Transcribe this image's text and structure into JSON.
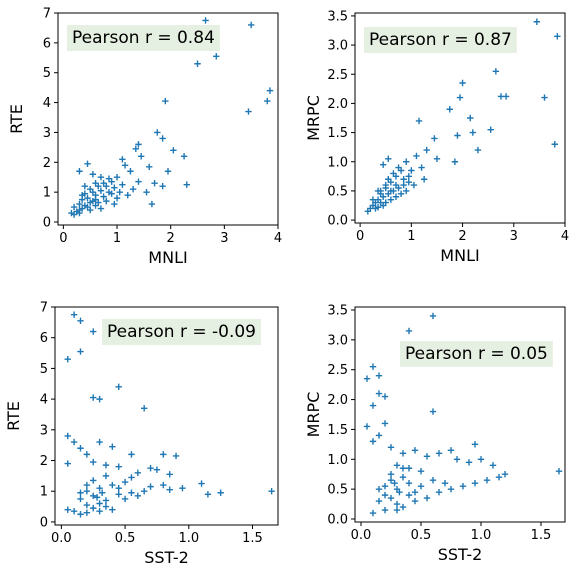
{
  "figure": {
    "background": "#ffffff",
    "marker_color": "#1f77b4",
    "annotation_bg": "#e6f0e2"
  },
  "chart_data": [
    {
      "type": "scatter",
      "xlabel": "MNLI",
      "ylabel": "RTE",
      "xlim": [
        -0.1,
        4.0
      ],
      "ylim": [
        -0.1,
        7.0
      ],
      "xticks": [
        0,
        1,
        2,
        3,
        4
      ],
      "yticks": [
        0,
        1,
        2,
        3,
        4,
        5,
        6,
        7
      ],
      "annotation": "Pearson r = 0.84",
      "marker": "+",
      "points": [
        [
          2.65,
          6.75
        ],
        [
          3.5,
          6.6
        ],
        [
          2.8,
          6.2
        ],
        [
          2.5,
          5.3
        ],
        [
          2.85,
          5.55
        ],
        [
          3.85,
          4.4
        ],
        [
          3.8,
          4.05
        ],
        [
          1.9,
          4.05
        ],
        [
          3.45,
          3.7
        ],
        [
          1.75,
          3.0
        ],
        [
          1.85,
          2.8
        ],
        [
          1.4,
          2.6
        ],
        [
          1.35,
          2.45
        ],
        [
          2.05,
          2.4
        ],
        [
          2.25,
          2.2
        ],
        [
          1.45,
          2.2
        ],
        [
          1.1,
          2.1
        ],
        [
          1.15,
          1.9
        ],
        [
          1.6,
          1.85
        ],
        [
          1.25,
          1.7
        ],
        [
          1.95,
          1.7
        ],
        [
          1.0,
          1.5
        ],
        [
          1.4,
          1.35
        ],
        [
          1.7,
          1.3
        ],
        [
          2.3,
          1.25
        ],
        [
          1.85,
          1.2
        ],
        [
          1.55,
          1.0
        ],
        [
          1.3,
          1.1
        ],
        [
          1.2,
          0.9
        ],
        [
          1.65,
          0.6
        ],
        [
          0.45,
          1.95
        ],
        [
          0.3,
          1.7
        ],
        [
          0.55,
          1.6
        ],
        [
          0.7,
          1.5
        ],
        [
          0.85,
          1.45
        ],
        [
          0.6,
          1.3
        ],
        [
          0.4,
          1.2
        ],
        [
          0.5,
          1.1
        ],
        [
          0.7,
          1.05
        ],
        [
          0.8,
          1.2
        ],
        [
          0.95,
          1.15
        ],
        [
          0.9,
          0.95
        ],
        [
          0.75,
          0.85
        ],
        [
          0.6,
          0.9
        ],
        [
          0.45,
          0.8
        ],
        [
          0.35,
          0.75
        ],
        [
          0.3,
          0.6
        ],
        [
          0.2,
          0.5
        ],
        [
          0.25,
          0.35
        ],
        [
          0.4,
          0.55
        ],
        [
          0.55,
          0.7
        ],
        [
          0.65,
          0.65
        ],
        [
          0.8,
          0.7
        ],
        [
          1.0,
          0.8
        ],
        [
          1.05,
          1.0
        ],
        [
          0.5,
          0.4
        ],
        [
          0.35,
          0.45
        ],
        [
          0.3,
          0.3
        ],
        [
          0.6,
          0.55
        ],
        [
          0.7,
          0.45
        ],
        [
          0.85,
          1.0
        ],
        [
          0.95,
          0.6
        ],
        [
          0.4,
          0.95
        ],
        [
          0.55,
          1.0
        ],
        [
          0.65,
          1.2
        ],
        [
          0.75,
          1.3
        ],
        [
          0.5,
          0.65
        ],
        [
          0.45,
          0.5
        ],
        [
          0.3,
          0.4
        ],
        [
          0.2,
          0.25
        ],
        [
          0.15,
          0.3
        ],
        [
          0.35,
          0.9
        ],
        [
          0.6,
          0.75
        ],
        [
          1.1,
          1.25
        ],
        [
          0.9,
          1.35
        ]
      ]
    },
    {
      "type": "scatter",
      "xlabel": "MNLI",
      "ylabel": "MRPC",
      "xlim": [
        -0.1,
        4.0
      ],
      "ylim": [
        -0.05,
        3.55
      ],
      "xticks": [
        0,
        1,
        2,
        3,
        4
      ],
      "yticks": [
        0.0,
        0.5,
        1.0,
        1.5,
        2.0,
        2.5,
        3.0,
        3.5
      ],
      "annotation": "Pearson r = 0.87",
      "marker": "+",
      "points": [
        [
          3.45,
          3.4
        ],
        [
          3.85,
          3.15
        ],
        [
          2.65,
          2.55
        ],
        [
          3.6,
          2.1
        ],
        [
          2.75,
          2.12
        ],
        [
          2.85,
          2.12
        ],
        [
          2.0,
          2.35
        ],
        [
          1.95,
          2.1
        ],
        [
          1.75,
          1.9
        ],
        [
          2.15,
          1.75
        ],
        [
          2.55,
          1.55
        ],
        [
          2.2,
          1.5
        ],
        [
          1.9,
          1.45
        ],
        [
          1.15,
          1.7
        ],
        [
          3.8,
          1.3
        ],
        [
          2.3,
          1.2
        ],
        [
          1.45,
          1.4
        ],
        [
          1.3,
          1.2
        ],
        [
          1.1,
          1.1
        ],
        [
          1.5,
          1.05
        ],
        [
          1.85,
          1.0
        ],
        [
          0.55,
          1.05
        ],
        [
          0.45,
          0.95
        ],
        [
          0.9,
          1.0
        ],
        [
          1.0,
          0.85
        ],
        [
          1.2,
          0.9
        ],
        [
          0.95,
          0.65
        ],
        [
          1.25,
          0.7
        ],
        [
          0.7,
          0.75
        ],
        [
          0.8,
          0.85
        ],
        [
          0.85,
          0.7
        ],
        [
          0.6,
          0.65
        ],
        [
          0.7,
          0.6
        ],
        [
          0.5,
          0.55
        ],
        [
          0.55,
          0.45
        ],
        [
          0.65,
          0.5
        ],
        [
          0.75,
          0.55
        ],
        [
          0.45,
          0.4
        ],
        [
          0.35,
          0.35
        ],
        [
          0.4,
          0.5
        ],
        [
          0.3,
          0.3
        ],
        [
          0.25,
          0.25
        ],
        [
          0.2,
          0.2
        ],
        [
          0.6,
          0.35
        ],
        [
          0.5,
          0.3
        ],
        [
          0.8,
          0.45
        ],
        [
          0.9,
          0.5
        ],
        [
          1.05,
          0.6
        ],
        [
          0.35,
          0.5
        ],
        [
          0.55,
          0.7
        ],
        [
          0.65,
          0.8
        ],
        [
          0.75,
          0.9
        ],
        [
          0.45,
          0.25
        ],
        [
          0.3,
          0.2
        ],
        [
          0.4,
          0.3
        ],
        [
          0.85,
          0.6
        ],
        [
          0.95,
          0.75
        ],
        [
          0.7,
          0.4
        ],
        [
          0.5,
          0.6
        ],
        [
          0.6,
          0.5
        ],
        [
          0.4,
          0.45
        ],
        [
          0.25,
          0.35
        ],
        [
          0.15,
          0.15
        ],
        [
          0.35,
          0.22
        ]
      ]
    },
    {
      "type": "scatter",
      "xlabel": "SST-2",
      "ylabel": "RTE",
      "xlim": [
        -0.05,
        1.7
      ],
      "ylim": [
        -0.1,
        7.0
      ],
      "xticks": [
        0.0,
        0.5,
        1.0,
        1.5
      ],
      "ytick_labels": [
        "0",
        "1",
        "2",
        "3",
        "4",
        "5",
        "6",
        "7"
      ],
      "yticks": [
        0,
        1,
        2,
        3,
        4,
        5,
        6,
        7
      ],
      "annotation": "Pearson r = -0.09",
      "marker": "+",
      "points": [
        [
          0.1,
          6.75
        ],
        [
          0.15,
          6.55
        ],
        [
          0.25,
          6.2
        ],
        [
          0.05,
          5.3
        ],
        [
          0.15,
          5.55
        ],
        [
          0.45,
          4.4
        ],
        [
          0.25,
          4.05
        ],
        [
          0.3,
          4.0
        ],
        [
          0.65,
          3.7
        ],
        [
          0.05,
          2.8
        ],
        [
          0.1,
          2.6
        ],
        [
          0.3,
          2.6
        ],
        [
          0.15,
          2.4
        ],
        [
          0.4,
          2.45
        ],
        [
          0.2,
          2.2
        ],
        [
          0.55,
          2.2
        ],
        [
          0.8,
          2.2
        ],
        [
          0.9,
          2.15
        ],
        [
          0.05,
          1.9
        ],
        [
          0.25,
          1.95
        ],
        [
          0.35,
          1.85
        ],
        [
          0.45,
          1.8
        ],
        [
          0.6,
          1.6
        ],
        [
          0.7,
          1.75
        ],
        [
          0.75,
          1.7
        ],
        [
          0.85,
          1.55
        ],
        [
          0.55,
          1.45
        ],
        [
          0.95,
          1.1
        ],
        [
          1.1,
          1.25
        ],
        [
          1.15,
          0.9
        ],
        [
          1.25,
          0.95
        ],
        [
          1.65,
          1.0
        ],
        [
          0.5,
          1.3
        ],
        [
          0.4,
          1.2
        ],
        [
          0.3,
          1.1
        ],
        [
          0.2,
          1.0
        ],
        [
          0.25,
          0.85
        ],
        [
          0.15,
          0.75
        ],
        [
          0.35,
          0.7
        ],
        [
          0.45,
          0.9
        ],
        [
          0.55,
          0.95
        ],
        [
          0.65,
          1.0
        ],
        [
          0.7,
          1.15
        ],
        [
          0.8,
          1.2
        ],
        [
          0.85,
          1.05
        ],
        [
          0.2,
          0.55
        ],
        [
          0.3,
          0.6
        ],
        [
          0.25,
          0.45
        ],
        [
          0.2,
          0.3
        ],
        [
          0.15,
          0.25
        ],
        [
          0.35,
          0.5
        ],
        [
          0.5,
          0.75
        ],
        [
          0.6,
          0.85
        ],
        [
          0.4,
          0.4
        ],
        [
          0.3,
          0.35
        ],
        [
          0.25,
          1.35
        ],
        [
          0.35,
          1.5
        ],
        [
          0.2,
          1.2
        ],
        [
          0.45,
          1.1
        ],
        [
          0.15,
          0.95
        ],
        [
          0.05,
          0.4
        ],
        [
          0.1,
          0.35
        ],
        [
          0.28,
          0.8
        ],
        [
          0.32,
          0.95
        ]
      ]
    },
    {
      "type": "scatter",
      "xlabel": "SST-2",
      "ylabel": "MRPC",
      "xlim": [
        -0.05,
        1.7
      ],
      "ylim": [
        -0.05,
        3.55
      ],
      "xticks": [
        0.0,
        0.5,
        1.0,
        1.5
      ],
      "yticks": [
        0.0,
        0.5,
        1.0,
        1.5,
        2.0,
        2.5,
        3.0,
        3.5
      ],
      "annotation": "Pearson r = 0.05",
      "marker": "+",
      "points": [
        [
          0.6,
          3.4
        ],
        [
          0.4,
          3.15
        ],
        [
          0.1,
          2.55
        ],
        [
          0.15,
          2.4
        ],
        [
          0.05,
          2.35
        ],
        [
          0.15,
          2.1
        ],
        [
          0.2,
          2.05
        ],
        [
          0.1,
          1.9
        ],
        [
          0.6,
          1.8
        ],
        [
          0.2,
          1.6
        ],
        [
          0.05,
          1.55
        ],
        [
          0.15,
          1.4
        ],
        [
          0.1,
          1.3
        ],
        [
          0.25,
          1.2
        ],
        [
          0.35,
          1.1
        ],
        [
          0.45,
          1.15
        ],
        [
          0.55,
          1.05
        ],
        [
          0.65,
          1.1
        ],
        [
          0.75,
          1.15
        ],
        [
          0.8,
          1.0
        ],
        [
          0.9,
          0.95
        ],
        [
          0.95,
          1.25
        ],
        [
          1.0,
          1.0
        ],
        [
          1.1,
          0.9
        ],
        [
          1.15,
          0.7
        ],
        [
          1.2,
          0.75
        ],
        [
          1.65,
          0.8
        ],
        [
          0.3,
          0.9
        ],
        [
          0.4,
          0.85
        ],
        [
          0.5,
          0.8
        ],
        [
          0.35,
          0.7
        ],
        [
          0.25,
          0.65
        ],
        [
          0.2,
          0.55
        ],
        [
          0.3,
          0.5
        ],
        [
          0.4,
          0.6
        ],
        [
          0.45,
          0.45
        ],
        [
          0.5,
          0.55
        ],
        [
          0.6,
          0.65
        ],
        [
          0.7,
          0.6
        ],
        [
          0.85,
          0.55
        ],
        [
          0.2,
          0.4
        ],
        [
          0.25,
          0.35
        ],
        [
          0.15,
          0.3
        ],
        [
          0.3,
          0.25
        ],
        [
          0.35,
          0.2
        ],
        [
          0.45,
          0.3
        ],
        [
          0.55,
          0.35
        ],
        [
          0.2,
          0.15
        ],
        [
          0.1,
          0.1
        ],
        [
          0.3,
          0.15
        ],
        [
          0.4,
          0.4
        ],
        [
          0.15,
          0.5
        ],
        [
          0.25,
          0.75
        ],
        [
          0.35,
          0.85
        ],
        [
          0.65,
          0.45
        ],
        [
          0.75,
          0.5
        ],
        [
          0.95,
          0.6
        ],
        [
          1.05,
          0.65
        ],
        [
          0.28,
          0.6
        ],
        [
          0.32,
          0.45
        ]
      ]
    }
  ]
}
